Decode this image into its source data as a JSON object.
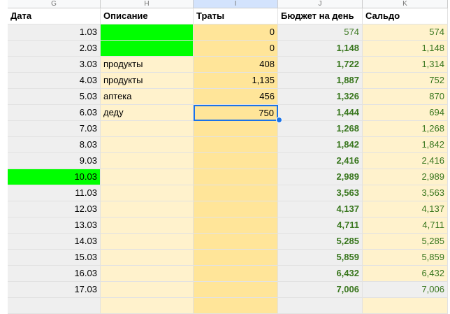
{
  "columns": [
    "G",
    "H",
    "I",
    "J",
    "K"
  ],
  "headers": [
    "Дата",
    "Описание",
    "Траты",
    "Бюджет на день",
    "Сальдо"
  ],
  "rows": [
    [
      "1.03",
      null,
      "0",
      "574",
      "574"
    ],
    [
      "2.03",
      null,
      "0",
      "1,148",
      "1,148"
    ],
    [
      "3.03",
      "продукты",
      "408",
      "1,722",
      "1,314"
    ],
    [
      "4.03",
      "продукты",
      "1,135",
      "1,887",
      "752"
    ],
    [
      "5.03",
      "аптека",
      "456",
      "1,326",
      "870"
    ],
    [
      "6.03",
      "деду",
      "750",
      "1,444",
      "694"
    ],
    [
      "7.03",
      null,
      null,
      "1,268",
      "1,268"
    ],
    [
      "8.03",
      null,
      null,
      "1,842",
      "1,842"
    ],
    [
      "9.03",
      null,
      null,
      "2,416",
      "2,416"
    ],
    [
      "10.03",
      null,
      null,
      "2,989",
      "2,989"
    ],
    [
      "11.03",
      null,
      null,
      "3,563",
      "3,563"
    ],
    [
      "12.03",
      null,
      null,
      "4,137",
      "4,137"
    ],
    [
      "13.03",
      null,
      null,
      "4,711",
      "4,711"
    ],
    [
      "14.03",
      null,
      null,
      "5,285",
      "5,285"
    ],
    [
      "15.03",
      null,
      null,
      "5,859",
      "5,859"
    ],
    [
      "16.03",
      null,
      null,
      "6,432",
      "6,432"
    ],
    [
      "17.03",
      null,
      null,
      "7,006",
      "7,006"
    ]
  ]
}
